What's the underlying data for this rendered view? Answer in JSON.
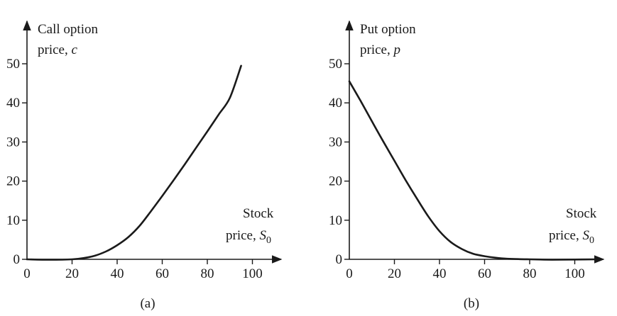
{
  "chart_data": [
    {
      "type": "line",
      "ylabel_line1": "Call option",
      "ylabel_line2_text": "price, ",
      "ylabel_line2_var": "c",
      "xlabel_line1": "Stock",
      "xlabel_line2_text": "price, ",
      "xlabel_line2_var": "S",
      "xlabel_line2_sub": "0",
      "caption": "(a)",
      "xlim": [
        0,
        110
      ],
      "ylim": [
        0,
        55
      ],
      "xticks": [
        0,
        20,
        40,
        60,
        80,
        100
      ],
      "yticks": [
        0,
        10,
        20,
        30,
        40,
        50
      ],
      "x": [
        0,
        10,
        20,
        25,
        30,
        35,
        40,
        45,
        50,
        55,
        60,
        65,
        70,
        75,
        80,
        85,
        90,
        95
      ],
      "y": [
        0,
        -0.1,
        0,
        0.3,
        0.9,
        2.0,
        3.6,
        5.7,
        8.6,
        12.3,
        16.2,
        20.2,
        24.3,
        28.5,
        32.7,
        37.0,
        41.3,
        49.5
      ]
    },
    {
      "type": "line",
      "ylabel_line1": "Put option",
      "ylabel_line2_text": "price, ",
      "ylabel_line2_var": "p",
      "xlabel_line1": "Stock",
      "xlabel_line2_text": "price, ",
      "xlabel_line2_var": "S",
      "xlabel_line2_sub": "0",
      "caption": "(b)",
      "xlim": [
        0,
        110
      ],
      "ylim": [
        0,
        55
      ],
      "xticks": [
        0,
        20,
        40,
        60,
        80,
        100
      ],
      "yticks": [
        0,
        10,
        20,
        30,
        40,
        50
      ],
      "x": [
        0,
        5,
        10,
        15,
        20,
        25,
        30,
        35,
        40,
        45,
        50,
        55,
        60,
        65,
        70,
        75,
        80,
        90,
        100,
        110
      ],
      "y": [
        45.5,
        40.5,
        35.3,
        30.2,
        25.2,
        20.2,
        15.5,
        11.0,
        7.2,
        4.4,
        2.6,
        1.4,
        0.8,
        0.4,
        0.15,
        0.05,
        0,
        -0.1,
        -0.05,
        0
      ]
    }
  ]
}
